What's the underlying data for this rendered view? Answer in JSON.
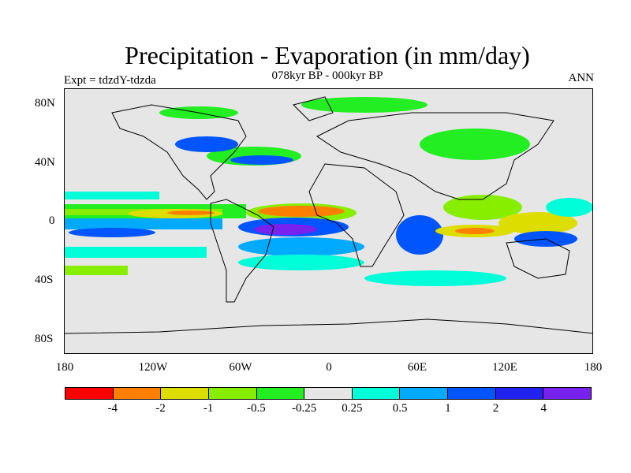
{
  "title": "Precipitation - Evaporation (in mm/day)",
  "subtitle": "078kyr BP - 000kyr BP",
  "left_label": "Expt = tdzdY-tdzda",
  "right_label": "ANN",
  "y_axis_labels": [
    "80N",
    "40N",
    "0",
    "40S",
    "80S"
  ],
  "x_axis_labels": [
    "180",
    "120W",
    "60W",
    "0",
    "60E",
    "120E",
    "180"
  ],
  "colorbar": {
    "colors": [
      "#ff0000",
      "#ff7f00",
      "#dddd00",
      "#88ee00",
      "#22ee22",
      "#e6e6e6",
      "#00ffd8",
      "#00aaff",
      "#0055ff",
      "#2222ee",
      "#7722ee"
    ],
    "labels": [
      "-4",
      "-2",
      "-1",
      "-0.5",
      "-0.25",
      "0.25",
      "0.5",
      "1",
      "2",
      "4"
    ]
  },
  "colors": {
    "background": "#e6e6e6",
    "coastline": "#000000"
  }
}
